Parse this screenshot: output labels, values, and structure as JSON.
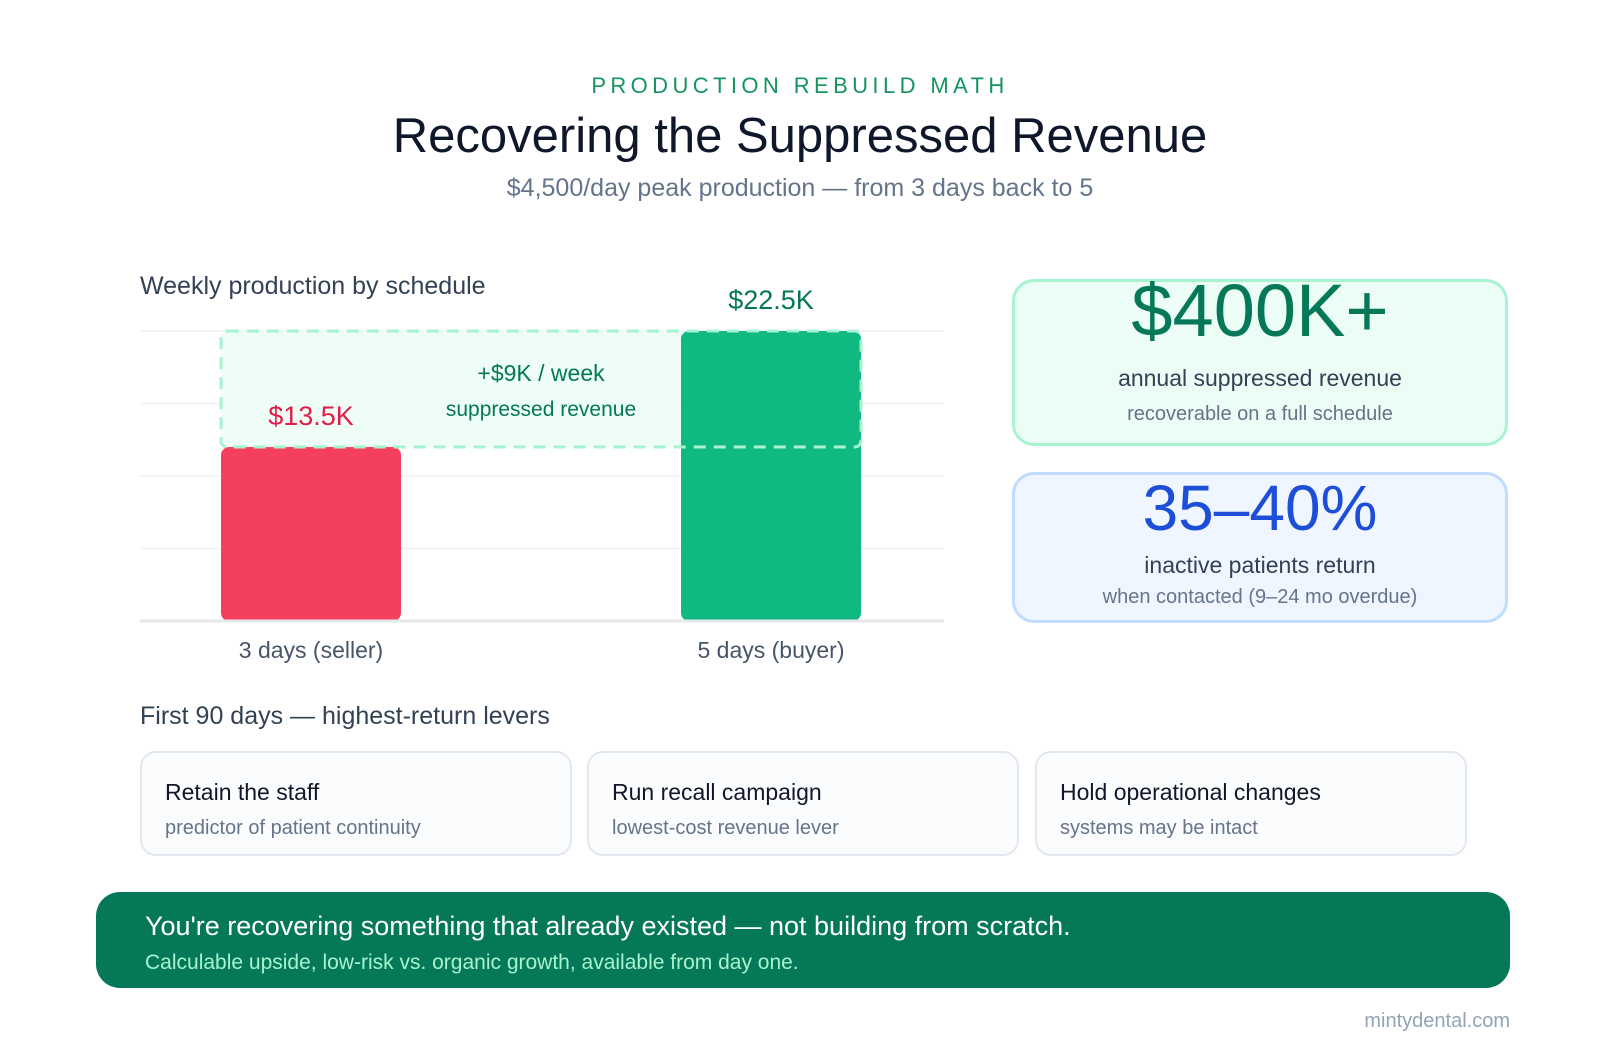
{
  "header": {
    "eyebrow": "PRODUCTION REBUILD MATH",
    "title": "Recovering the Suppressed Revenue",
    "subtitle": "$4,500/day peak production — from 3 days back to 5"
  },
  "chart_data": {
    "type": "bar",
    "title": "Weekly production by schedule",
    "categories": [
      "3 days (seller)",
      "5 days (buyer)"
    ],
    "values": [
      13.5,
      22.5
    ],
    "value_labels": [
      "$13.5K",
      "$22.5K"
    ],
    "unit": "$K per week",
    "ylim": [
      0,
      22.5
    ],
    "grid": true,
    "colors": [
      "#f43f5e",
      "#10b981"
    ],
    "annotation": {
      "from": 13.5,
      "to": 22.5,
      "line1": "+$9K / week",
      "line2": "suppressed revenue",
      "color": "#047857"
    }
  },
  "stats": [
    {
      "value": "$400K+",
      "label": "annual suppressed revenue",
      "sub": "recoverable on a full schedule"
    },
    {
      "value": "35–40%",
      "label": "inactive patients return",
      "sub": "when contacted (9–24 mo overdue)"
    }
  ],
  "levers": {
    "heading": "First 90 days — highest-return levers",
    "items": [
      {
        "title": "Retain the staff",
        "sub": "predictor of patient continuity"
      },
      {
        "title": "Run recall campaign",
        "sub": "lowest-cost revenue lever"
      },
      {
        "title": "Hold operational changes",
        "sub": "systems may be intact"
      }
    ]
  },
  "banner": {
    "main": "You're recovering something that already existed — not building from scratch.",
    "sub": "Calculable upside, low-risk vs. organic growth, available from day one."
  },
  "footer": "mintydental.com"
}
